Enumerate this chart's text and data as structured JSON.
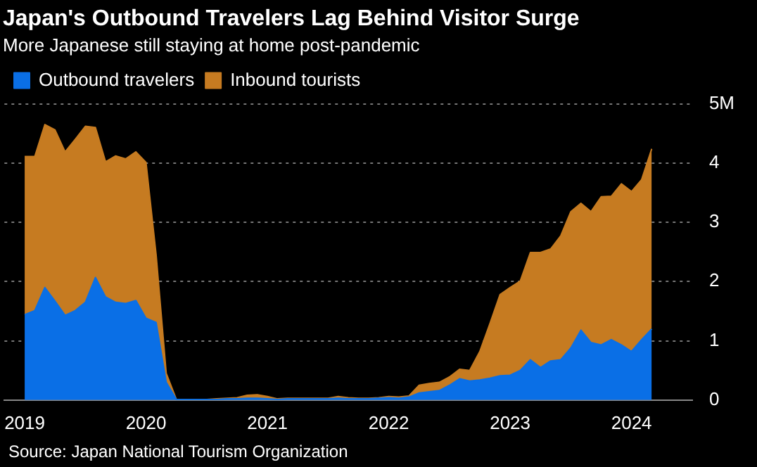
{
  "chart_data": {
    "type": "area",
    "title": "Japan's Outbound Travelers Lag Behind Visitor Surge",
    "subtitle": "More Japanese still staying at home post-pandemic",
    "stacked": true,
    "x": [
      "2019-01",
      "2019-02",
      "2019-03",
      "2019-04",
      "2019-05",
      "2019-06",
      "2019-07",
      "2019-08",
      "2019-09",
      "2019-10",
      "2019-11",
      "2019-12",
      "2020-01",
      "2020-02",
      "2020-03",
      "2020-04",
      "2020-05",
      "2020-06",
      "2020-07",
      "2020-08",
      "2020-09",
      "2020-10",
      "2020-11",
      "2020-12",
      "2021-01",
      "2021-02",
      "2021-03",
      "2021-04",
      "2021-05",
      "2021-06",
      "2021-07",
      "2021-08",
      "2021-09",
      "2021-10",
      "2021-11",
      "2021-12",
      "2022-01",
      "2022-02",
      "2022-03",
      "2022-04",
      "2022-05",
      "2022-06",
      "2022-07",
      "2022-08",
      "2022-09",
      "2022-10",
      "2022-11",
      "2022-12",
      "2023-01",
      "2023-02",
      "2023-03",
      "2023-04",
      "2023-05",
      "2023-06",
      "2023-07",
      "2023-08",
      "2023-09",
      "2023-10",
      "2023-11",
      "2023-12",
      "2024-01",
      "2024-02",
      "2024-03"
    ],
    "series": [
      {
        "name": "Outbound travelers",
        "color": "#0a6fe6",
        "values": [
          1.44,
          1.51,
          1.9,
          1.67,
          1.43,
          1.51,
          1.65,
          2.07,
          1.74,
          1.65,
          1.63,
          1.68,
          1.38,
          1.31,
          0.3,
          0.01,
          0.01,
          0.01,
          0.01,
          0.01,
          0.02,
          0.02,
          0.03,
          0.03,
          0.02,
          0.01,
          0.02,
          0.02,
          0.02,
          0.02,
          0.02,
          0.03,
          0.02,
          0.02,
          0.02,
          0.03,
          0.04,
          0.03,
          0.05,
          0.12,
          0.14,
          0.16,
          0.25,
          0.36,
          0.32,
          0.34,
          0.37,
          0.41,
          0.42,
          0.5,
          0.68,
          0.55,
          0.66,
          0.68,
          0.88,
          1.18,
          0.97,
          0.93,
          1.02,
          0.93,
          0.82,
          1.02,
          1.2
        ]
      },
      {
        "name": "Inbound tourists",
        "color": "#c67b21",
        "values": [
          2.67,
          2.6,
          2.75,
          2.89,
          2.76,
          2.89,
          2.97,
          2.53,
          2.28,
          2.47,
          2.44,
          2.51,
          2.63,
          1.14,
          0.15,
          0.0,
          0.0,
          0.0,
          0.0,
          0.01,
          0.01,
          0.02,
          0.05,
          0.06,
          0.04,
          0.01,
          0.01,
          0.01,
          0.01,
          0.01,
          0.01,
          0.03,
          0.02,
          0.01,
          0.01,
          0.01,
          0.02,
          0.02,
          0.02,
          0.13,
          0.14,
          0.14,
          0.14,
          0.16,
          0.18,
          0.48,
          0.92,
          1.37,
          1.48,
          1.51,
          1.81,
          1.94,
          1.89,
          2.09,
          2.3,
          2.14,
          2.21,
          2.5,
          2.42,
          2.72,
          2.7,
          2.7,
          3.04
        ]
      }
    ],
    "xlim": [
      "2018-11",
      "2024-07"
    ],
    "xticks": [
      "2019",
      "2020",
      "2021",
      "2022",
      "2023",
      "2024"
    ],
    "ylim": [
      0,
      5
    ],
    "yticks": [
      0,
      1,
      2,
      3,
      4,
      {
        "value": 5,
        "label": "5M"
      }
    ],
    "grid": "y",
    "legend": "top left",
    "annotations": [
      "Source: Japan National Tourism Organization"
    ]
  }
}
